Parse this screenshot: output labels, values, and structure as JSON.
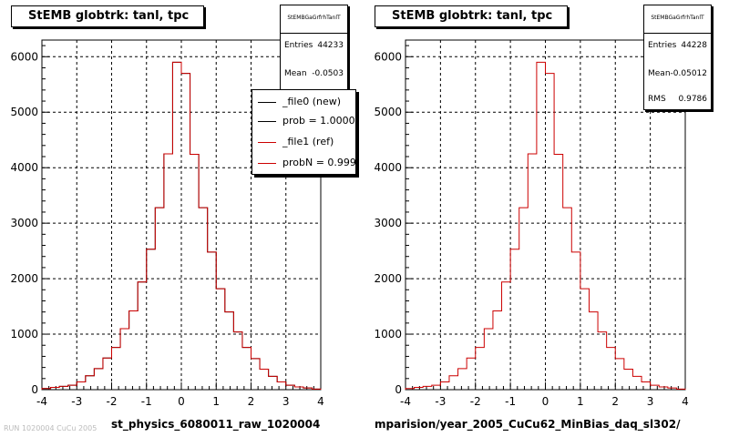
{
  "colors": {
    "reference": "#cc0000",
    "new": "#000000",
    "grid": "#000000"
  },
  "left_panel": {
    "title": "StEMB globtrk: tanl, tpc",
    "stats": {
      "name": "StEMBGaGrfrhTanlT",
      "entries_label": "Entries",
      "entries_value": "44233",
      "mean_label": "Mean",
      "mean_value": "-0.0503"
    },
    "legend": [
      {
        "label": "_file0 (new)",
        "color": "#000000"
      },
      {
        "label": "prob = 1.000000",
        "color": "#000000"
      },
      {
        "label": "_file1 (ref)",
        "color": "#cc0000"
      },
      {
        "label": "probN = 0.999910",
        "color": "#cc0000"
      }
    ],
    "bottom_label": "st_physics_6080011_raw_1020004"
  },
  "right_panel": {
    "title": "StEMB globtrk: tanl, tpc",
    "stats": {
      "name": "StEMBGaGrfrhTanlT",
      "entries_label": "Entries",
      "entries_value": "44228",
      "mean_label": "Mean",
      "mean_value": "-0.05012",
      "rms_label": "RMS",
      "rms_value": "0.9786"
    },
    "bottom_label": "mparision/year_2005_CuCu62_MinBias_daq_sl302/"
  },
  "footer_faint": "RUN 1020004  CuCu 2005",
  "chart_data": [
    {
      "type": "bar",
      "title": "StEMB globtrk: tanl, tpc",
      "xlim": [
        -4,
        4
      ],
      "ylim": [
        0,
        6300
      ],
      "x_ticks": [
        -4,
        -3,
        -2,
        -1,
        0,
        1,
        2,
        3,
        4
      ],
      "y_ticks": [
        0,
        1000,
        2000,
        3000,
        4000,
        5000,
        6000
      ],
      "grid": true,
      "legend_position": "top-right",
      "bin_edges": [
        -4.0,
        -3.75,
        -3.5,
        -3.25,
        -3.0,
        -2.75,
        -2.5,
        -2.25,
        -2.0,
        -1.75,
        -1.5,
        -1.25,
        -1.0,
        -0.75,
        -0.5,
        -0.25,
        0.0,
        0.25,
        0.5,
        0.75,
        1.0,
        1.25,
        1.5,
        1.75,
        2.0,
        2.25,
        2.5,
        2.75,
        3.0,
        3.25,
        3.5,
        3.75,
        4.0
      ],
      "series": [
        {
          "name": "_file0 (new)",
          "values": [
            20,
            40,
            60,
            80,
            140,
            250,
            380,
            570,
            760,
            1100,
            1420,
            1940,
            2530,
            3280,
            4250,
            5900,
            5700,
            4240,
            3280,
            2480,
            1820,
            1400,
            1040,
            760,
            560,
            370,
            240,
            140,
            80,
            50,
            30,
            10
          ]
        },
        {
          "name": "_file1 (ref)",
          "values": [
            20,
            40,
            60,
            80,
            140,
            250,
            380,
            570,
            760,
            1100,
            1420,
            1940,
            2530,
            3280,
            4250,
            5900,
            5700,
            4240,
            3280,
            2480,
            1820,
            1400,
            1040,
            760,
            560,
            370,
            240,
            140,
            80,
            50,
            30,
            10
          ]
        }
      ]
    },
    {
      "type": "bar",
      "title": "StEMB globtrk: tanl, tpc",
      "xlim": [
        -4,
        4
      ],
      "ylim": [
        0,
        6300
      ],
      "x_ticks": [
        -4,
        -3,
        -2,
        -1,
        0,
        1,
        2,
        3,
        4
      ],
      "y_ticks": [
        0,
        1000,
        2000,
        3000,
        4000,
        5000,
        6000
      ],
      "grid": true,
      "bin_edges": [
        -4.0,
        -3.75,
        -3.5,
        -3.25,
        -3.0,
        -2.75,
        -2.5,
        -2.25,
        -2.0,
        -1.75,
        -1.5,
        -1.25,
        -1.0,
        -0.75,
        -0.5,
        -0.25,
        0.0,
        0.25,
        0.5,
        0.75,
        1.0,
        1.25,
        1.5,
        1.75,
        2.0,
        2.25,
        2.5,
        2.75,
        3.0,
        3.25,
        3.5,
        3.75,
        4.0
      ],
      "series": [
        {
          "name": "_file1 (ref)",
          "values": [
            20,
            40,
            60,
            80,
            140,
            250,
            380,
            570,
            760,
            1100,
            1420,
            1940,
            2530,
            3280,
            4250,
            5900,
            5700,
            4240,
            3280,
            2480,
            1820,
            1400,
            1040,
            760,
            560,
            370,
            240,
            140,
            80,
            50,
            30,
            10
          ]
        }
      ]
    }
  ]
}
